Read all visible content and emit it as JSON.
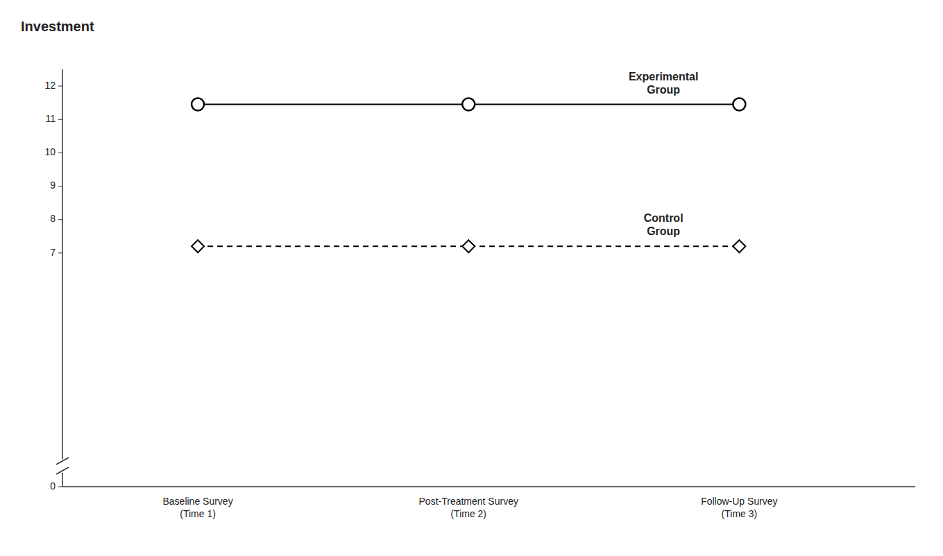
{
  "chart_data": {
    "type": "line",
    "y_label": "Investment",
    "categories": [
      "Baseline Survey\n(Time 1)",
      "Post-Treatment Survey\n(Time 2)",
      "Follow-Up Survey\n(Time 3)"
    ],
    "series": [
      {
        "name": "Experimental\nGroup",
        "color": "#000000",
        "marker": "circle",
        "line_style": "solid",
        "values": [
          11.45,
          11.45,
          11.45
        ]
      },
      {
        "name": "Control\nGroup",
        "color": "#000000",
        "marker": "diamond",
        "line_style": "dashed",
        "values": [
          7.2,
          7.2,
          7.2
        ]
      }
    ],
    "ylim": [
      0,
      12.5
    ],
    "yticks": [
      0,
      7,
      8,
      9,
      10,
      11,
      12
    ],
    "grid": false
  }
}
